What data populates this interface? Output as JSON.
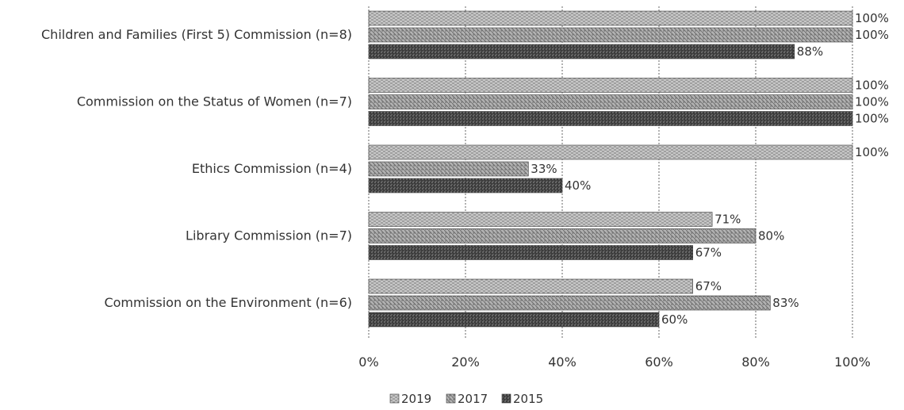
{
  "chart_data": {
    "type": "bar",
    "orientation": "horizontal",
    "categories": [
      "Children and Families (First 5) Commission (n=8)",
      "Commission on the Status of Women (n=7)",
      "Ethics Commission (n=4)",
      "Library Commission (n=7)",
      "Commission on the Environment (n=6)"
    ],
    "series": [
      {
        "name": "2019",
        "values": [
          100,
          100,
          100,
          71,
          67
        ],
        "labels": [
          "100%",
          "100%",
          "100%",
          "71%",
          "67%"
        ],
        "color": "#b4b4b4"
      },
      {
        "name": "2017",
        "values": [
          100,
          100,
          33,
          80,
          83
        ],
        "labels": [
          "100%",
          "100%",
          "33%",
          "80%",
          "83%"
        ],
        "color": "#9c9c9c"
      },
      {
        "name": "2015",
        "values": [
          88,
          100,
          40,
          67,
          60
        ],
        "labels": [
          "88%",
          "100%",
          "40%",
          "67%",
          "60%"
        ],
        "color": "#4a4a4a"
      }
    ],
    "xlim": [
      0,
      100
    ],
    "xticks": [
      "0%",
      "20%",
      "40%",
      "60%",
      "80%",
      "100%"
    ],
    "grid": true,
    "legend": "bottom"
  }
}
